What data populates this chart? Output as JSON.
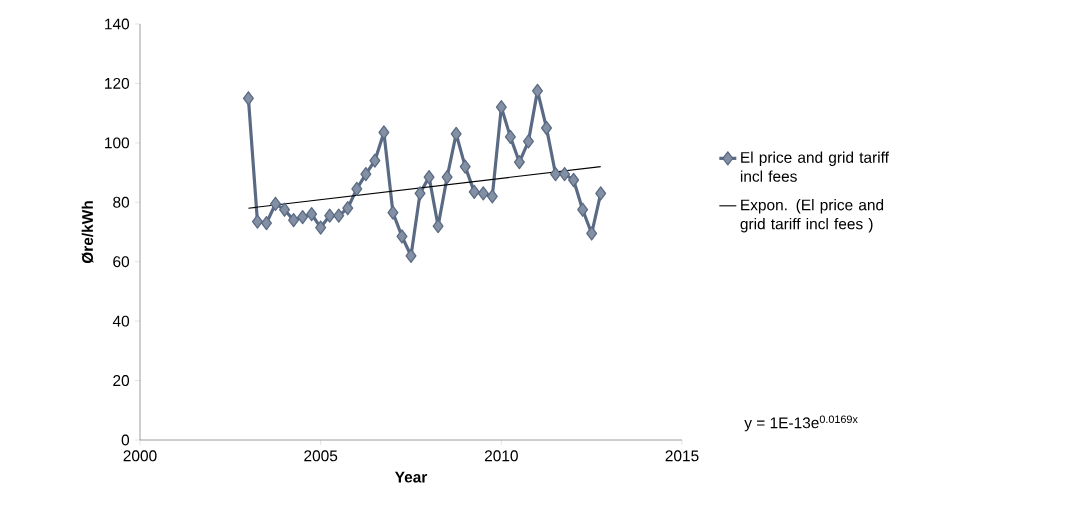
{
  "chart_data": {
    "type": "line",
    "xlabel": "Year",
    "ylabel": "Øre/kWh",
    "xlim": [
      2000,
      2015
    ],
    "xticks": [
      2000,
      2005,
      2010,
      2015
    ],
    "ylim": [
      0,
      140
    ],
    "yticks": [
      0,
      20,
      40,
      60,
      80,
      100,
      120,
      140
    ],
    "legend": "right",
    "marker": "diamond",
    "line_style": "solid",
    "series": [
      {
        "name": "El price and grid tariff incl fees",
        "color": "#5a6a84",
        "x": [
          2003,
          2003.25,
          2003.5,
          2003.75,
          2004,
          2004.25,
          2004.5,
          2004.75,
          2005,
          2005.25,
          2005.5,
          2005.75,
          2006,
          2006.25,
          2006.5,
          2006.75,
          2007,
          2007.25,
          2007.5,
          2007.75,
          2008,
          2008.25,
          2008.5,
          2008.75,
          2009,
          2009.25,
          2009.5,
          2009.75,
          2010,
          2010.25,
          2010.5,
          2010.75,
          2011,
          2011.25,
          2011.5,
          2011.75,
          2012,
          2012.25,
          2012.5,
          2012.75
        ],
        "values": [
          115,
          73.5,
          73,
          79.5,
          77.5,
          74,
          75,
          76,
          71.5,
          75.5,
          75.5,
          78,
          84.5,
          89.5,
          94,
          103.5,
          76.5,
          68.5,
          62,
          83,
          88.5,
          72,
          88.5,
          103,
          92,
          83.5,
          83,
          82,
          112,
          102,
          93.5,
          100.5,
          117.5,
          105,
          89.5,
          89.5,
          87.5,
          77.5,
          69.5,
          83
        ]
      },
      {
        "name": "Expon. (El price and grid tariff incl fees )",
        "color": "#000000",
        "marker": "none",
        "x": [
          2003,
          2012.75
        ],
        "values": [
          78,
          92
        ]
      }
    ],
    "annotations": [
      "y = 1E-13e$^{0.0169x}$"
    ]
  }
}
